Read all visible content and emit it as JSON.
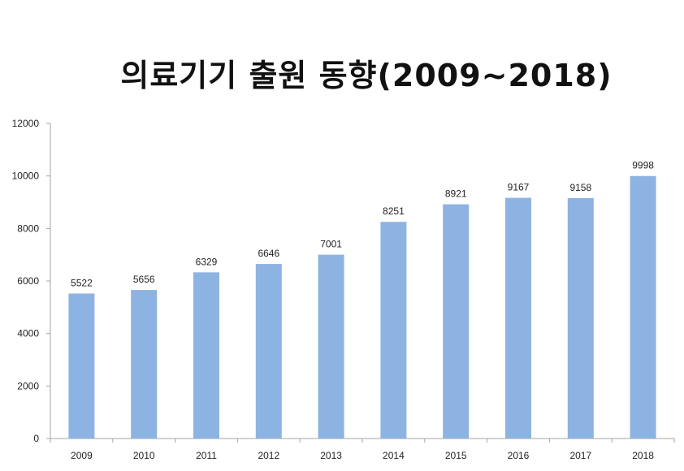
{
  "chart_data": {
    "type": "bar",
    "title": "의료기기 출원 동향(2009~2018)",
    "categories": [
      "2009",
      "2010",
      "2011",
      "2012",
      "2013",
      "2014",
      "2015",
      "2016",
      "2017",
      "2018"
    ],
    "values": [
      5522,
      5656,
      6329,
      6646,
      7001,
      8251,
      8921,
      9167,
      9158,
      9998
    ],
    "ylim": [
      0,
      12000
    ],
    "yticks": [
      0,
      2000,
      4000,
      6000,
      8000,
      10000,
      12000
    ],
    "grid": false,
    "bar_color": "#8DB3E2",
    "axis_color": "#A6A6A6"
  }
}
